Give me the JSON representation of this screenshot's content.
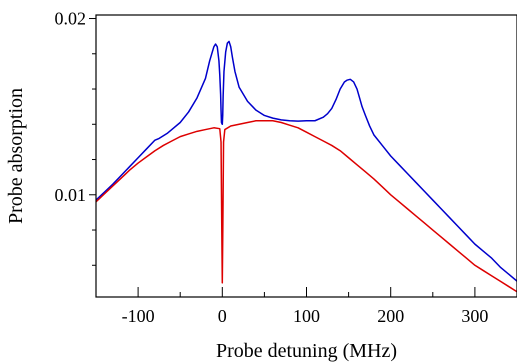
{
  "chart_data": {
    "type": "line",
    "title": "",
    "xlabel": "Probe detuning (MHz)",
    "ylabel": "Probe absorption",
    "xlim": [
      -150,
      350
    ],
    "ylim": [
      0.0042,
      0.0202
    ],
    "x_ticks": [
      -100,
      0,
      100,
      200,
      300
    ],
    "x_tick_labels": [
      "-100",
      "0",
      "100",
      "200",
      "300"
    ],
    "x_minor_ticks": [
      -150,
      -50,
      50,
      150,
      250
    ],
    "y_ticks": [
      0.01,
      0.02
    ],
    "y_tick_labels": [
      "0.01",
      "0.02"
    ],
    "y_minor_ticks": [
      0.006,
      0.008,
      0.012,
      0.014,
      0.016,
      0.018
    ],
    "grid": false,
    "legend": "none",
    "series": [
      {
        "color": "#0000cc",
        "x": [
          -150,
          -140,
          -130,
          -120,
          -110,
          -100,
          -90,
          -80,
          -75,
          -70,
          -65,
          -60,
          -50,
          -40,
          -30,
          -20,
          -15,
          -10,
          -8,
          -6,
          -4,
          -3,
          -2,
          -1.5,
          -1,
          0,
          0.5,
          1,
          2,
          4,
          6,
          8,
          10,
          12,
          15,
          20,
          30,
          40,
          50,
          60,
          70,
          80,
          90,
          100,
          110,
          120,
          125,
          130,
          135,
          140,
          145,
          148,
          152,
          156,
          160,
          163,
          166,
          170,
          175,
          180,
          190,
          200,
          210,
          220,
          230,
          240,
          250,
          260,
          270,
          280,
          290,
          300,
          310,
          320,
          330,
          340,
          350
        ],
        "y": [
          0.0097,
          0.01015,
          0.0106,
          0.0111,
          0.0116,
          0.0121,
          0.0126,
          0.0131,
          0.0132,
          0.01335,
          0.0135,
          0.0137,
          0.0141,
          0.0147,
          0.0155,
          0.0166,
          0.0176,
          0.0184,
          0.01855,
          0.0184,
          0.0176,
          0.0168,
          0.0157,
          0.0148,
          0.0141,
          0.014,
          0.0145,
          0.0156,
          0.017,
          0.0181,
          0.0186,
          0.0187,
          0.0184,
          0.0178,
          0.017,
          0.0161,
          0.0153,
          0.0148,
          0.0145,
          0.01435,
          0.01425,
          0.0142,
          0.01418,
          0.0142,
          0.0142,
          0.0144,
          0.0146,
          0.0149,
          0.0154,
          0.016,
          0.0164,
          0.0165,
          0.01655,
          0.0164,
          0.016,
          0.0155,
          0.015,
          0.0145,
          0.0139,
          0.0134,
          0.0128,
          0.0122,
          0.0117,
          0.0112,
          0.0107,
          0.0102,
          0.0097,
          0.0092,
          0.0087,
          0.0082,
          0.0077,
          0.0072,
          0.0068,
          0.0064,
          0.0059,
          0.0055,
          0.0051
        ]
      },
      {
        "color": "#dd0000",
        "x": [
          -150,
          -140,
          -130,
          -120,
          -110,
          -100,
          -90,
          -80,
          -70,
          -60,
          -50,
          -40,
          -30,
          -20,
          -10,
          -3,
          -1.5,
          -0.6,
          0,
          0.6,
          1.5,
          3,
          10,
          20,
          30,
          40,
          50,
          60,
          70,
          80,
          90,
          100,
          110,
          120,
          130,
          140,
          150,
          160,
          170,
          180,
          190,
          200,
          210,
          220,
          230,
          240,
          250,
          260,
          270,
          280,
          290,
          300,
          310,
          320,
          330,
          340,
          350
        ],
        "y": [
          0.0096,
          0.01005,
          0.0105,
          0.01095,
          0.0114,
          0.0118,
          0.01215,
          0.0125,
          0.0128,
          0.01305,
          0.0133,
          0.01345,
          0.0136,
          0.0137,
          0.0138,
          0.01375,
          0.013,
          0.008,
          0.005,
          0.008,
          0.013,
          0.0137,
          0.0139,
          0.014,
          0.0141,
          0.0142,
          0.0142,
          0.0142,
          0.0141,
          0.01395,
          0.0138,
          0.01355,
          0.0133,
          0.01305,
          0.0128,
          0.0125,
          0.0121,
          0.0117,
          0.0113,
          0.0109,
          0.01045,
          0.01,
          0.0096,
          0.0092,
          0.0088,
          0.0084,
          0.008,
          0.0076,
          0.0072,
          0.0068,
          0.0064,
          0.006,
          0.0057,
          0.0054,
          0.0051,
          0.0048,
          0.0045
        ]
      }
    ]
  }
}
